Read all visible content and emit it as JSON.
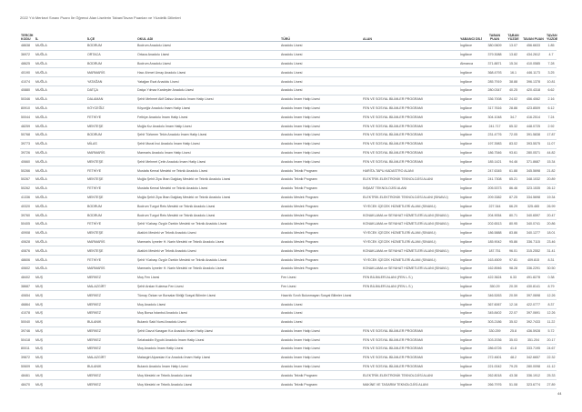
{
  "title": "2022 Yılı Merkezi Sınavı Puanı İle Öğrenci Alan Liselerin Taban/Tavan Puanları ve Yüzdelik Dilimleri",
  "page_number": "44",
  "headers": [
    "TERCİH KODU",
    "İL",
    "İLÇE",
    "OKUL ADI",
    "TÜRÜ",
    "ALAN",
    "YABANCI DİLİ",
    "TABAN PUAN",
    "TABAN YÜZDE",
    "TAVAN PUAN",
    "TAVAN YÜZDE"
  ],
  "rows": [
    [
      "48638",
      "MUĞLA",
      "BODRUM",
      "Bodrum Anadolu Lisesi",
      "Anadolu Lisesi",
      "",
      "İngilizce",
      "380.0609",
      "13.07",
      "456.6633",
      "1.85"
    ],
    [
      "36972",
      "MUĞLA",
      "ORTACA",
      "Ortaca Anadolu Lisesi",
      "Anadolu Lisesi",
      "",
      "İngilizce",
      "379.3088",
      "13.82",
      "434.2612",
      "4.7"
    ],
    [
      "48625",
      "MUĞLA",
      "BODRUM",
      "Bodrum Anadolu Lisesi",
      "Anadolu Lisesi",
      "",
      "Almanca",
      "371.8871",
      "15.34",
      "410.0585",
      "7.28"
    ],
    [
      "40190",
      "MUĞLA",
      "MARMARİS",
      "Hacı Ahmet Umay Anadolu Lisesi",
      "Anadolu Lisesi",
      "",
      "İngilizce",
      "368.4793",
      "16.1",
      "446.1173",
      "3.25"
    ],
    [
      "41074",
      "MUĞLA",
      "YATAĞAN",
      "Yatağan Esat Anadolu Lisesi",
      "Anadolu Lisesi",
      "",
      "İngilizce",
      "285.7919",
      "38.88",
      "396.1378",
      "10.81"
    ],
    [
      "40880",
      "MUĞLA",
      "DATÇA",
      "Datça Yılmaz Kardeşler Anadolu Lisesi",
      "Anadolu Lisesi",
      "",
      "İngilizce",
      "280.0347",
      "40.25",
      "420.4318",
      "6.62"
    ],
    [
      "50346",
      "MUĞLA",
      "DALAMAN",
      "Şehit Mehmet Akif Dalsız Anadolu İmam Hatip Lisesi",
      "Anadolu İmam Hatip Lisesi",
      "FEN VE SOSYAL BİLİMLER PROGRAMI",
      "İngilizce",
      "336.7008",
      "24.02",
      "456.4062",
      "2.16"
    ],
    [
      "80910",
      "MUĞLA",
      "KÖYCEĞİZ",
      "Köyceğiz Anadolu İmam Hatip Lisesi",
      "Anadolu İmam Hatip Lisesi",
      "FEN VE SOSYAL BİLİMLER PROGRAMI",
      "İngilizce",
      "317.7616",
      "28.86",
      "423.8509",
      "6.12"
    ],
    [
      "50044",
      "MUĞLA",
      "FETHİYE",
      "Fethiye Anadolu İmam Hatip Lisesi",
      "Anadolu İmam Hatip Lisesi",
      "FEN VE SOSYAL BİLİMLER PROGRAMI",
      "İngilizce",
      "304.1048",
      "34.7",
      "416.2514",
      "7.24"
    ],
    [
      "48259",
      "MUĞLA",
      "MENTEŞE",
      "Muğla Kız Anadolu İmam Hatip Lisesi",
      "Anadolu İmam Hatip Lisesi",
      "FEN VE SOSYAL BİLİMLER PROGRAMI",
      "İngilizce",
      "241.717",
      "65.32",
      "448.0725",
      "2.92"
    ],
    [
      "50768",
      "MUĞLA",
      "BODRUM",
      "Şehit Türkmen Tekin Anadolu İmam Hatip Lisesi",
      "Anadolu İmam Hatip Lisesi",
      "FEN VE SOSYAL BİLİMLER PROGRAMI",
      "İngilizce",
      "231.4776",
      "72.05",
      "391.5838",
      "17.87"
    ],
    [
      "39773",
      "MUĞLA",
      "MİLAS",
      "Şehit Murat İnci Anadolu İmam Hatip Lisesi",
      "Anadolu İmam Hatip Lisesi",
      "FEN VE SOSYAL BİLİMLER PROGRAMI",
      "İngilizce",
      "197.3983",
      "83.02",
      "393.5575",
      "11.07"
    ],
    [
      "39726",
      "MUĞLA",
      "MARMARİS",
      "Marmaris Anadolu İmam Hatip Lisesi",
      "Anadolu İmam Hatip Lisesi",
      "FEN VE SOSYAL BİLİMLER PROGRAMI",
      "İngilizce",
      "186.7546",
      "93.61",
      "280.0571",
      "44.82"
    ],
    [
      "40660",
      "MUĞLA",
      "MENTEŞE",
      "Şehit Mehmet Çetin Anadolu İmam Hatip Lisesi",
      "Anadolu İmam Hatip Lisesi",
      "FEN VE SOSYAL BİLİMLER PROGRAMI",
      "İngilizce",
      "185.1421",
      "94.46",
      "371.8687",
      "15.34"
    ],
    [
      "50266",
      "MUĞLA",
      "FETHİYE",
      "Mustafa Kemal Mesleki ve Teknik Anadolu Lisesi",
      "Anadolu Teknik Programı",
      "HARİTA-TAPU-KADASTRO ALANI",
      "İngilizce",
      "247.6345",
      "61.88",
      "345.5698",
      "21.82"
    ],
    [
      "50267",
      "MUĞLA",
      "MENTEŞE",
      "Muğla Şehit Ziya İlhan Dağdaş Mesleki ve Teknik Anadolu Lisesi",
      "Anadolu Teknik Programı",
      "ELEKTRİK-ELEKTRONİK TEKNOLOJİSİ ALANI",
      "İngilizce",
      "241.7308",
      "65.21",
      "348.1032",
      "20.89"
    ],
    [
      "50262",
      "MUĞLA",
      "FETHİYE",
      "Mustafa Kemal Mesleki ve Teknik Anadolu Lisesi",
      "Anadolu Teknik Programı",
      "İNŞAAT TEKNOLOJİSİ ALANI",
      "İngilizce",
      "205.5373",
      "86.46",
      "323.1535",
      "26.12"
    ],
    [
      "41336",
      "MUĞLA",
      "MENTEŞE",
      "Muğla Şehit Ziya İlhan Dağdaş Mesleki ve Teknik Anadolu Lisesi",
      "Anadolu Meslek Programı",
      "ELEKTRİK-ELEKTRONİK TEKNOLOJİSİ ALANI (SINAVLI)",
      "İngilizce",
      "209.3382",
      "87.25",
      "334.5698",
      "19.34"
    ],
    [
      "40320",
      "MUĞLA",
      "BODRUM",
      "Bodrum Turgut Reis Mesleki ve Teknik Anadolu Lisesi",
      "Anadolu Meslek Programı",
      "YİYECEK İÇECEK HİZMETLERİ ALANI (SINAVLI)",
      "İngilizce",
      "227.344",
      "66.29",
      "325.465",
      "26.99"
    ],
    [
      "39760",
      "MUĞLA",
      "BODRUM",
      "Bodrum Turgut Reis Mesleki ve Teknik Anadolu Lisesi",
      "Anadolu Meslek Programı",
      "KONAKLAMA ve SEYAHAT HİZMETLERİ ALANI (SINAVLI)",
      "İngilizce",
      "204.9054",
      "80.71",
      "340.6597",
      "20.47"
    ],
    [
      "50405",
      "MUĞLA",
      "FETHİYE",
      "Şehit Yüzbaşı Özgür Özekin Mesleki ve Teknik Anadolu Lisesi",
      "Anadolu Meslek Programı",
      "KONAKLAMA ve SEYAHAT HİZMETLERİ ALANI (SINAVLI)",
      "İngilizce",
      "202.6513",
      "80.95",
      "340.0741",
      "20.86"
    ],
    [
      "40908",
      "MUĞLA",
      "MENTEŞE",
      "Atatürk Mesleki ve Teknik Anadolu Lisesi",
      "Anadolu Meslek Programı",
      "YİYECEK İÇECEK HİZMETLERİ ALANI (SINAVLI)",
      "İngilizce",
      "186.5888",
      "83.86",
      "340.1277",
      "18.01"
    ],
    [
      "40628",
      "MUĞLA",
      "MARMARİS",
      "Marmaris İçmeler H. Narin Mesleki ve Teknik Anadolu Lisesi",
      "Anadolu Meslek Programı",
      "YİYECEK İÇECEK HİZMETLERİ ALANI (SINAVLI)",
      "İngilizce",
      "185.9042",
      "95.86",
      "336.7115",
      "23.46"
    ],
    [
      "40876",
      "MUĞLA",
      "MENTEŞE",
      "Atatürk Mesleki ve Teknik Anadolu Lisesi",
      "Anadolu Meslek Programı",
      "KONAKLAMA ve SEYAHAT HİZMETLERİ ALANI (SINAVLI)",
      "İngilizce",
      "187.751",
      "96.01",
      "315.2552",
      "31.41"
    ],
    [
      "48606",
      "MUĞLA",
      "FETHİYE",
      "Şehit Yüzbaşı Özgür Özekin Mesleki ve Teknik Anadolu Lisesi",
      "Anadolu Meslek Programı",
      "YİYECEK İÇECEK HİZMETLERİ ALANI (SINAVLI)",
      "İngilizce",
      "163.4509",
      "97.81",
      "409.815",
      "8.31"
    ],
    [
      "40602",
      "MUĞLA",
      "MARMARİS",
      "Marmaris İçmeler H. Narin Mesleki ve Teknik Anadolu Lisesi",
      "Anadolu Meslek Programı",
      "KONAKLAMA ve SEYAHAT HİZMETLERİ ALANI (SINAVLI)",
      "İngilizce",
      "162.8946",
      "98.28",
      "336.2291",
      "30.50"
    ],
    [
      "48402",
      "MUŞ",
      "MERKEZ",
      "Muş Fen Lisesi",
      "Fen Lisesi",
      "FEN BİLİMLERİ ALANI (FEN L.S.)",
      "İngilizce",
      "422.3624",
      "6.33",
      "491.8278",
      "0.38"
    ],
    [
      "38687",
      "MUŞ",
      "MALAZGİRT",
      "Şehit Arslan Kuleesa Fen Lisesi",
      "Fen Lisesi",
      "FEN BİLİMLERİ ALANI (FEN L.S.)",
      "İngilizce",
      "350.29",
      "20.39",
      "430.8141",
      "8.79"
    ],
    [
      "40654",
      "MUŞ",
      "MERKEZ",
      "Tümay Özkan ve Borsalar Birliği Sosyal Bilimler Lisesi",
      "Hazırlık Sınıfı Bulunmayan Sosyal Bilimler Lisesi",
      "",
      "İngilizce",
      "346.5263",
      "20.59",
      "397.0698",
      "12.26"
    ],
    [
      "46864",
      "MUŞ",
      "MERKEZ",
      "Muş Anadolu Lisesi",
      "Anadolu Lisesi",
      "",
      "İngilizce",
      "367.6067",
      "12.16",
      "422.0777",
      "8.37"
    ],
    [
      "41078",
      "MUŞ",
      "MERKEZ",
      "Muş Borsa İstanbul Anadolu Lisesi",
      "Anadolu Lisesi",
      "",
      "İngilizce",
      "345.8402",
      "22.07",
      "397.0691",
      "12.26"
    ],
    [
      "50040",
      "MUŞ",
      "BULANIK",
      "Bulanık Said Nursi Anadolu Lisesi",
      "Anadolu Lisesi",
      "",
      "İngilizce",
      "303.2186",
      "35.02",
      "392.7433",
      "11.22"
    ],
    [
      "39746",
      "MUŞ",
      "MERKEZ",
      "Şehit Davut Karagan Kız Anadolu İmam Hatip Lisesi",
      "Anadolu İmam Hatip Lisesi",
      "FEN VE SOSYAL BİLİMLER PROGRAMI",
      "İngilizce",
      "330.259",
      "25.8",
      "436.5928",
      "5.72"
    ],
    [
      "50418",
      "MUŞ",
      "MERKEZ",
      "Selahaddin Eyyubi Anadolu İmam Hatip Lisesi",
      "Anadolu İmam Hatip Lisesi",
      "FEN VE SOSYAL BİLİMLER PROGRAMI",
      "İngilizce",
      "303.2036",
      "35.03",
      "351.204",
      "20.17"
    ],
    [
      "80011",
      "MUŞ",
      "MERKEZ",
      "Muş Anadolu İmam Hatip Lisesi",
      "Anadolu İmam Hatip Lisesi",
      "FEN VE SOSYAL BİLİMLER PROGRAMI",
      "İngilizce",
      "286.6726",
      "41.8",
      "333.7195",
      "24.67"
    ],
    [
      "39872",
      "MUŞ",
      "MALAZGİRT",
      "Malazgirt Alparslan Kız Anadolu İmam Hatip Lisesi",
      "Anadolu İmam Hatip Lisesi",
      "FEN VE SOSYAL BİLİMLER PROGRAMI",
      "İngilizce",
      "272.4601",
      "48.2",
      "342.6657",
      "22.32"
    ],
    [
      "50609",
      "MUŞ",
      "BULANIK",
      "Bulanık Anadolu İmam Hatip Lisesi",
      "Anadolu İmam Hatip Lisesi",
      "FEN VE SOSYAL BİLİMLER PROGRAMI",
      "İngilizce",
      "221.0042",
      "79.25",
      "280.0098",
      "41.12"
    ],
    [
      "48461",
      "MUŞ",
      "MERKEZ",
      "Muş Mesleki ve Teknik Anadolu Lisesi",
      "Anadolu Teknik Programı",
      "ELEKTRİK-ELEKTRONİK TEKNOLOJİSİ ALANI",
      "İngilizce",
      "262.8018",
      "43.38",
      "336.1912",
      "25.33"
    ],
    [
      "48470",
      "MUŞ",
      "MERKEZ",
      "Muş Mesleki ve Teknik Anadolu Lisesi",
      "Anadolu Teknik Programı",
      "MAKİNE VE TASARIM TEKNOLOJİSİ ALANI",
      "İngilizce",
      "266.7976",
      "51.08",
      "323.6774",
      "27.89"
    ]
  ]
}
